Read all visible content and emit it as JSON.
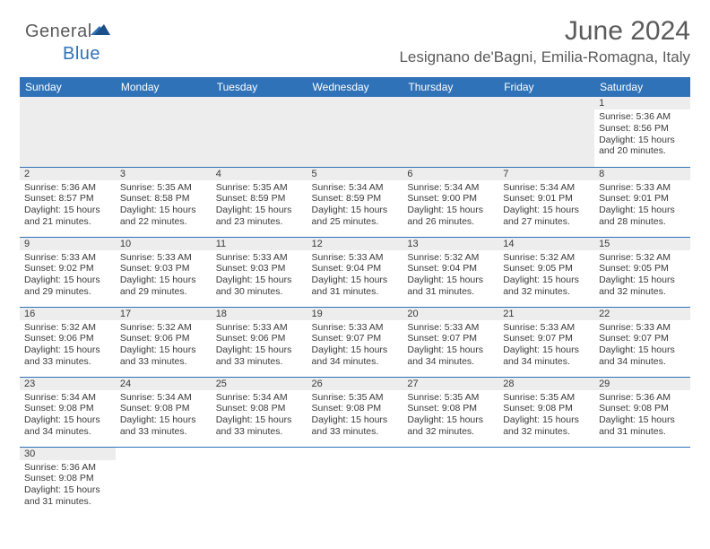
{
  "logo": {
    "general": "General",
    "blue": "Blue"
  },
  "title": "June 2024",
  "location": "Lesignano de'Bagni, Emilia-Romagna, Italy",
  "colors": {
    "header_bg": "#2f72b8",
    "header_text": "#ffffff",
    "row_border": "#2f72b8",
    "daynum_bg": "#ededed",
    "text": "#3a3a3a",
    "title_text": "#5a5a5a"
  },
  "day_headers": [
    "Sunday",
    "Monday",
    "Tuesday",
    "Wednesday",
    "Thursday",
    "Friday",
    "Saturday"
  ],
  "weeks": [
    [
      null,
      null,
      null,
      null,
      null,
      null,
      {
        "n": 1,
        "r": "5:36 AM",
        "s": "8:56 PM",
        "d": "15 hours and 20 minutes."
      }
    ],
    [
      {
        "n": 2,
        "r": "5:36 AM",
        "s": "8:57 PM",
        "d": "15 hours and 21 minutes."
      },
      {
        "n": 3,
        "r": "5:35 AM",
        "s": "8:58 PM",
        "d": "15 hours and 22 minutes."
      },
      {
        "n": 4,
        "r": "5:35 AM",
        "s": "8:59 PM",
        "d": "15 hours and 23 minutes."
      },
      {
        "n": 5,
        "r": "5:34 AM",
        "s": "8:59 PM",
        "d": "15 hours and 25 minutes."
      },
      {
        "n": 6,
        "r": "5:34 AM",
        "s": "9:00 PM",
        "d": "15 hours and 26 minutes."
      },
      {
        "n": 7,
        "r": "5:34 AM",
        "s": "9:01 PM",
        "d": "15 hours and 27 minutes."
      },
      {
        "n": 8,
        "r": "5:33 AM",
        "s": "9:01 PM",
        "d": "15 hours and 28 minutes."
      }
    ],
    [
      {
        "n": 9,
        "r": "5:33 AM",
        "s": "9:02 PM",
        "d": "15 hours and 29 minutes."
      },
      {
        "n": 10,
        "r": "5:33 AM",
        "s": "9:03 PM",
        "d": "15 hours and 29 minutes."
      },
      {
        "n": 11,
        "r": "5:33 AM",
        "s": "9:03 PM",
        "d": "15 hours and 30 minutes."
      },
      {
        "n": 12,
        "r": "5:33 AM",
        "s": "9:04 PM",
        "d": "15 hours and 31 minutes."
      },
      {
        "n": 13,
        "r": "5:32 AM",
        "s": "9:04 PM",
        "d": "15 hours and 31 minutes."
      },
      {
        "n": 14,
        "r": "5:32 AM",
        "s": "9:05 PM",
        "d": "15 hours and 32 minutes."
      },
      {
        "n": 15,
        "r": "5:32 AM",
        "s": "9:05 PM",
        "d": "15 hours and 32 minutes."
      }
    ],
    [
      {
        "n": 16,
        "r": "5:32 AM",
        "s": "9:06 PM",
        "d": "15 hours and 33 minutes."
      },
      {
        "n": 17,
        "r": "5:32 AM",
        "s": "9:06 PM",
        "d": "15 hours and 33 minutes."
      },
      {
        "n": 18,
        "r": "5:33 AM",
        "s": "9:06 PM",
        "d": "15 hours and 33 minutes."
      },
      {
        "n": 19,
        "r": "5:33 AM",
        "s": "9:07 PM",
        "d": "15 hours and 34 minutes."
      },
      {
        "n": 20,
        "r": "5:33 AM",
        "s": "9:07 PM",
        "d": "15 hours and 34 minutes."
      },
      {
        "n": 21,
        "r": "5:33 AM",
        "s": "9:07 PM",
        "d": "15 hours and 34 minutes."
      },
      {
        "n": 22,
        "r": "5:33 AM",
        "s": "9:07 PM",
        "d": "15 hours and 34 minutes."
      }
    ],
    [
      {
        "n": 23,
        "r": "5:34 AM",
        "s": "9:08 PM",
        "d": "15 hours and 34 minutes."
      },
      {
        "n": 24,
        "r": "5:34 AM",
        "s": "9:08 PM",
        "d": "15 hours and 33 minutes."
      },
      {
        "n": 25,
        "r": "5:34 AM",
        "s": "9:08 PM",
        "d": "15 hours and 33 minutes."
      },
      {
        "n": 26,
        "r": "5:35 AM",
        "s": "9:08 PM",
        "d": "15 hours and 33 minutes."
      },
      {
        "n": 27,
        "r": "5:35 AM",
        "s": "9:08 PM",
        "d": "15 hours and 32 minutes."
      },
      {
        "n": 28,
        "r": "5:35 AM",
        "s": "9:08 PM",
        "d": "15 hours and 32 minutes."
      },
      {
        "n": 29,
        "r": "5:36 AM",
        "s": "9:08 PM",
        "d": "15 hours and 31 minutes."
      }
    ],
    [
      {
        "n": 30,
        "r": "5:36 AM",
        "s": "9:08 PM",
        "d": "15 hours and 31 minutes."
      },
      null,
      null,
      null,
      null,
      null,
      null
    ]
  ],
  "labels": {
    "sunrise": "Sunrise:",
    "sunset": "Sunset:",
    "daylight": "Daylight:"
  }
}
